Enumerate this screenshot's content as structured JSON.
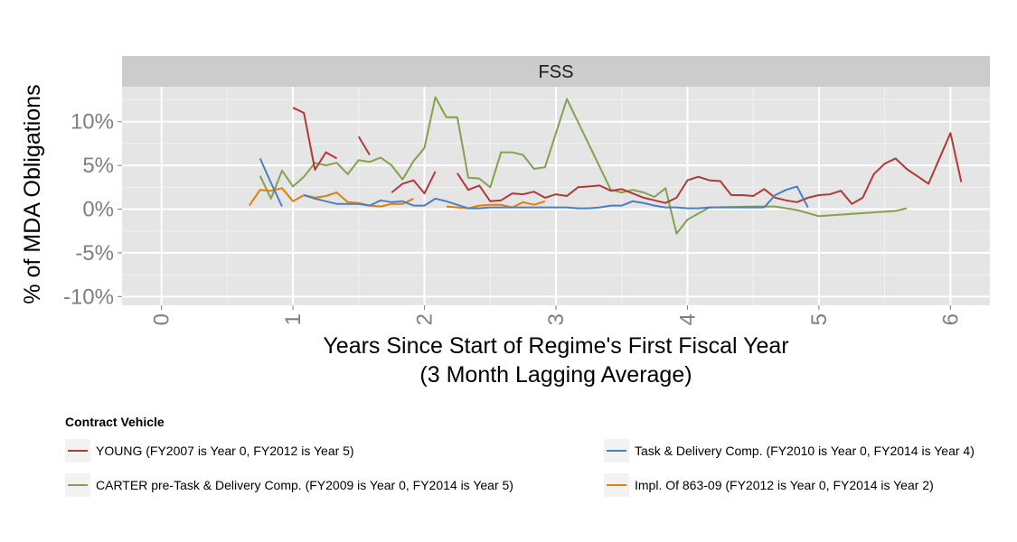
{
  "chart_data": {
    "type": "line",
    "facet_label": "FSS",
    "xlabel": "Years Since Start of Regime's First Fiscal Year",
    "xlabel_line2": "(3 Month Lagging Average)",
    "ylabel": "% of MDA Obligations",
    "xlim": [
      -0.3,
      6.3
    ],
    "ylim": [
      -0.11,
      0.14
    ],
    "x_ticks": [
      0,
      1,
      2,
      3,
      4,
      5,
      6
    ],
    "x_tick_labels": [
      "0",
      "1",
      "2",
      "3",
      "4",
      "5",
      "6"
    ],
    "y_ticks": [
      -0.1,
      -0.05,
      0.0,
      0.05,
      0.1
    ],
    "y_tick_labels": [
      "-10%",
      "-5%",
      "0%",
      "5%",
      "10%"
    ],
    "grid": true,
    "legend": {
      "title": "Contract Vehicle",
      "placement": "bottom"
    },
    "series": [
      {
        "name": "YOUNG (FY2007 is Year 0, FY2012 is Year 5)",
        "color": "#b03a36",
        "segments": [
          [
            [
              1.0,
              0.116
            ],
            [
              1.083,
              0.11
            ],
            [
              1.167,
              0.045
            ],
            [
              1.25,
              0.065
            ],
            [
              1.333,
              0.058
            ]
          ],
          [
            [
              1.5,
              0.083
            ],
            [
              1.583,
              0.062
            ]
          ],
          [
            [
              1.75,
              0.019
            ],
            [
              1.833,
              0.029
            ],
            [
              1.917,
              0.033
            ],
            [
              2.0,
              0.018
            ],
            [
              2.083,
              0.043
            ]
          ],
          [
            [
              2.25,
              0.041
            ],
            [
              2.333,
              0.022
            ],
            [
              2.417,
              0.027
            ],
            [
              2.5,
              0.009
            ],
            [
              2.583,
              0.01
            ],
            [
              2.667,
              0.018
            ],
            [
              2.75,
              0.017
            ],
            [
              2.833,
              0.02
            ],
            [
              2.917,
              0.013
            ],
            [
              3.0,
              0.017
            ],
            [
              3.083,
              0.015
            ],
            [
              3.167,
              0.025
            ],
            [
              3.25,
              0.026
            ],
            [
              3.333,
              0.027
            ],
            [
              3.417,
              0.021
            ],
            [
              3.5,
              0.023
            ],
            [
              3.583,
              0.018
            ],
            [
              3.667,
              0.013
            ],
            [
              3.75,
              0.01
            ],
            [
              3.833,
              0.007
            ],
            [
              3.917,
              0.013
            ],
            [
              4.0,
              0.033
            ],
            [
              4.083,
              0.037
            ],
            [
              4.167,
              0.033
            ],
            [
              4.25,
              0.032
            ],
            [
              4.333,
              0.016
            ],
            [
              4.417,
              0.016
            ],
            [
              4.5,
              0.015
            ],
            [
              4.583,
              0.023
            ],
            [
              4.667,
              0.013
            ],
            [
              4.75,
              0.01
            ],
            [
              4.833,
              0.008
            ],
            [
              4.917,
              0.013
            ],
            [
              5.0,
              0.016
            ],
            [
              5.083,
              0.017
            ],
            [
              5.167,
              0.021
            ],
            [
              5.25,
              0.006
            ],
            [
              5.333,
              0.013
            ],
            [
              5.417,
              0.04
            ],
            [
              5.5,
              0.052
            ],
            [
              5.583,
              0.058
            ],
            [
              5.667,
              0.046
            ],
            [
              5.833,
              0.029
            ],
            [
              6.0,
              0.087
            ],
            [
              6.083,
              0.031
            ]
          ]
        ]
      },
      {
        "name": "Task & Delivery Comp. (FY2010 is Year 0, FY2014 is Year 4)",
        "color": "#4a7fc1",
        "segments": [
          [
            [
              0.75,
              0.058
            ],
            [
              0.833,
              0.03
            ],
            [
              0.917,
              0.003
            ]
          ],
          [
            [
              1.083,
              0.016
            ],
            [
              1.167,
              0.012
            ],
            [
              1.25,
              0.009
            ],
            [
              1.333,
              0.006
            ],
            [
              1.417,
              0.006
            ],
            [
              1.5,
              0.006
            ],
            [
              1.583,
              0.004
            ],
            [
              1.667,
              0.01
            ],
            [
              1.75,
              0.008
            ],
            [
              1.833,
              0.009
            ],
            [
              1.917,
              0.004
            ],
            [
              2.0,
              0.004
            ],
            [
              2.083,
              0.012
            ],
            [
              2.167,
              0.009
            ],
            [
              2.25,
              0.005
            ],
            [
              2.333,
              0.001
            ],
            [
              2.417,
              0.001
            ],
            [
              2.5,
              0.002
            ],
            [
              2.583,
              0.002
            ],
            [
              2.667,
              0.002
            ],
            [
              2.75,
              0.002
            ],
            [
              2.833,
              0.002
            ],
            [
              2.917,
              0.002
            ],
            [
              3.0,
              0.002
            ],
            [
              3.083,
              0.002
            ],
            [
              3.167,
              0.001
            ],
            [
              3.25,
              0.001
            ],
            [
              3.333,
              0.002
            ],
            [
              3.417,
              0.004
            ],
            [
              3.5,
              0.004
            ],
            [
              3.583,
              0.009
            ],
            [
              3.667,
              0.007
            ],
            [
              3.75,
              0.004
            ],
            [
              3.833,
              0.002
            ],
            [
              3.917,
              0.002
            ],
            [
              4.0,
              0.001
            ],
            [
              4.083,
              0.001
            ],
            [
              4.167,
              0.002
            ],
            [
              4.25,
              0.002
            ],
            [
              4.333,
              0.002
            ],
            [
              4.417,
              0.002
            ],
            [
              4.5,
              0.002
            ],
            [
              4.583,
              0.002
            ],
            [
              4.667,
              0.016
            ],
            [
              4.75,
              0.022
            ],
            [
              4.833,
              0.026
            ],
            [
              4.917,
              0.002
            ]
          ]
        ]
      },
      {
        "name": "CARTER pre-Task & Delivery Comp. (FY2009 is Year 0, FY2014 is Year 5)",
        "color": "#84a24d",
        "segments": [
          [
            [
              0.75,
              0.038
            ],
            [
              0.833,
              0.012
            ],
            [
              0.917,
              0.044
            ],
            [
              1.0,
              0.026
            ],
            [
              1.083,
              0.037
            ],
            [
              1.167,
              0.053
            ],
            [
              1.25,
              0.05
            ],
            [
              1.333,
              0.053
            ],
            [
              1.417,
              0.04
            ],
            [
              1.5,
              0.056
            ],
            [
              1.583,
              0.054
            ],
            [
              1.667,
              0.059
            ],
            [
              1.75,
              0.05
            ],
            [
              1.833,
              0.034
            ],
            [
              1.917,
              0.055
            ],
            [
              2.0,
              0.07
            ],
            [
              2.083,
              0.128
            ],
            [
              2.167,
              0.105
            ],
            [
              2.25,
              0.105
            ],
            [
              2.333,
              0.036
            ],
            [
              2.417,
              0.035
            ],
            [
              2.5,
              0.025
            ],
            [
              2.583,
              0.065
            ],
            [
              2.667,
              0.065
            ],
            [
              2.75,
              0.062
            ],
            [
              2.833,
              0.046
            ],
            [
              2.917,
              0.048
            ],
            [
              3.083,
              0.126
            ],
            [
              3.417,
              0.022
            ],
            [
              3.5,
              0.019
            ],
            [
              3.583,
              0.022
            ],
            [
              3.667,
              0.019
            ],
            [
              3.75,
              0.014
            ],
            [
              3.833,
              0.024
            ],
            [
              3.917,
              -0.028
            ],
            [
              4.0,
              -0.012
            ],
            [
              4.167,
              0.002
            ],
            [
              4.5,
              0.003
            ],
            [
              4.667,
              0.003
            ],
            [
              4.833,
              -0.001
            ],
            [
              5.0,
              -0.008
            ],
            [
              5.583,
              -0.002
            ],
            [
              5.667,
              0.001
            ]
          ]
        ]
      },
      {
        "name": "Impl. Of 863-09 (FY2012 is Year 0, FY2014 is Year 2)",
        "color": "#e07e0c",
        "segments": [
          [
            [
              0.667,
              0.004
            ],
            [
              0.75,
              0.022
            ],
            [
              0.833,
              0.021
            ],
            [
              0.917,
              0.024
            ],
            [
              1.0,
              0.009
            ],
            [
              1.083,
              0.016
            ],
            [
              1.167,
              0.013
            ],
            [
              1.25,
              0.015
            ],
            [
              1.333,
              0.019
            ],
            [
              1.417,
              0.008
            ],
            [
              1.5,
              0.007
            ],
            [
              1.583,
              0.004
            ],
            [
              1.667,
              0.003
            ],
            [
              1.75,
              0.006
            ],
            [
              1.833,
              0.006
            ],
            [
              1.917,
              0.012
            ]
          ],
          [
            [
              2.167,
              0.003
            ],
            [
              2.25,
              0.002
            ],
            [
              2.333,
              0.001
            ],
            [
              2.417,
              0.004
            ],
            [
              2.5,
              0.005
            ],
            [
              2.583,
              0.005
            ],
            [
              2.667,
              0.002
            ],
            [
              2.75,
              0.008
            ],
            [
              2.833,
              0.005
            ],
            [
              2.917,
              0.009
            ]
          ]
        ]
      }
    ]
  }
}
